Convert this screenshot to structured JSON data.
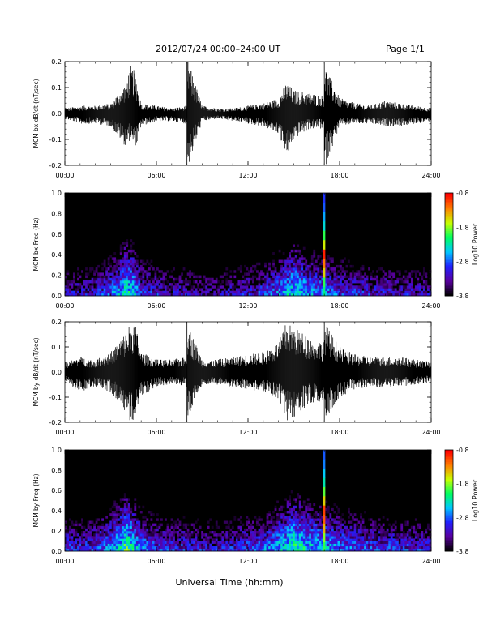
{
  "header": {
    "title": "2012/07/24  00:00–24:00 UT",
    "page": "Page 1/1"
  },
  "footer": {
    "xlabel": "Universal Time (hh:mm)"
  },
  "colors": {
    "trace": "#000000",
    "colormap": [
      "#000000",
      "#5a00a0",
      "#2020ff",
      "#00c8ff",
      "#00ff60",
      "#c8ff00",
      "#ff8000",
      "#ff0000"
    ]
  },
  "chart_data": [
    {
      "type": "line",
      "ylabel": "MCM bx dB/dt (nT/sec)",
      "xlim": [
        0,
        24
      ],
      "ylim": [
        -0.2,
        0.2
      ],
      "xticks": [
        "00:00",
        "06:00",
        "12:00",
        "18:00",
        "24:00"
      ],
      "yticks": [
        "-0.2",
        "-0.1",
        "0.0",
        "0.1",
        "0.2"
      ],
      "series": [
        {
          "x": [
            0,
            1,
            2,
            3,
            4,
            4.3,
            4.6,
            5,
            6,
            7,
            8,
            8,
            9,
            10,
            11,
            12,
            13,
            14,
            14.5,
            15,
            16,
            17,
            17,
            18,
            19,
            20,
            21,
            22,
            23,
            24
          ],
          "y": [
            0.02,
            0.03,
            0.03,
            0.04,
            0.12,
            0.19,
            0.16,
            0.04,
            0.03,
            0.02,
            0.03,
            0.22,
            0.03,
            0.02,
            0.02,
            0.03,
            0.04,
            0.06,
            0.12,
            0.09,
            0.08,
            0.07,
            0.19,
            0.06,
            0.04,
            0.03,
            0.05,
            0.04,
            0.03,
            0.02
          ],
          "ymin": [
            -0.02,
            -0.04,
            -0.04,
            -0.05,
            -0.13,
            -0.1,
            -0.15,
            -0.05,
            -0.03,
            -0.03,
            -0.04,
            -0.22,
            -0.03,
            -0.02,
            -0.03,
            -0.04,
            -0.05,
            -0.08,
            -0.18,
            -0.1,
            -0.06,
            -0.06,
            -0.22,
            -0.05,
            -0.04,
            -0.04,
            -0.05,
            -0.05,
            -0.04,
            -0.03
          ]
        }
      ]
    },
    {
      "type": "heatmap",
      "ylabel": "MCM bx Freq (Hz)",
      "colorbar_label": "Log10 Power",
      "xlim": [
        0,
        24
      ],
      "ylim": [
        0,
        1.0
      ],
      "xticks": [
        "00:00",
        "06:00",
        "12:00",
        "18:00",
        "24:00"
      ],
      "yticks": [
        "0.0",
        "0.2",
        "0.4",
        "0.6",
        "0.8",
        "1.0"
      ],
      "cbar_ticks": [
        "-0.8",
        "-1.8",
        "-2.8",
        "-3.8"
      ],
      "crange": [
        -3.8,
        -0.8
      ],
      "x": [
        0,
        1,
        2,
        3,
        3.5,
        4,
        4.5,
        5,
        6,
        7,
        8,
        9,
        10,
        11,
        12,
        13,
        14,
        15,
        16,
        17,
        18,
        19,
        20,
        21,
        22,
        23,
        24
      ],
      "lf_power": [
        -3.2,
        -3.2,
        -3.1,
        -2.8,
        -2.6,
        -2.2,
        -2.4,
        -2.9,
        -3.1,
        -3.2,
        -3.2,
        -3.3,
        -3.3,
        -3.2,
        -3.1,
        -3.0,
        -2.7,
        -2.3,
        -2.6,
        -2.7,
        -2.9,
        -3.0,
        -3.1,
        -3.1,
        -3.2,
        -3.2,
        -3.3
      ],
      "spike": {
        "t": 17.0,
        "power": [
          -2.2,
          -2.0,
          -1.5,
          -1.2,
          -0.9,
          -1.6,
          -2.0,
          -2.4,
          -2.6,
          -2.8,
          -2.9
        ]
      }
    },
    {
      "type": "line",
      "ylabel": "MCM by dB/dt (nT/sec)",
      "xlim": [
        0,
        24
      ],
      "ylim": [
        -0.2,
        0.2
      ],
      "xticks": [
        "00:00",
        "06:00",
        "12:00",
        "18:00",
        "24:00"
      ],
      "yticks": [
        "-0.2",
        "-0.1",
        "0.0",
        "0.1",
        "0.2"
      ],
      "series": [
        {
          "x": [
            0,
            1,
            2,
            3,
            4,
            4.3,
            4.6,
            5,
            6,
            7,
            8,
            8,
            9,
            10,
            11,
            12,
            13,
            14,
            14.5,
            15,
            16,
            17,
            17,
            18,
            19,
            20,
            21,
            22,
            23,
            24
          ],
          "y": [
            0.04,
            0.06,
            0.05,
            0.08,
            0.16,
            0.2,
            0.2,
            0.08,
            0.05,
            0.05,
            0.06,
            0.2,
            0.05,
            0.05,
            0.06,
            0.07,
            0.08,
            0.12,
            0.2,
            0.18,
            0.14,
            0.12,
            0.2,
            0.1,
            0.07,
            0.06,
            0.06,
            0.06,
            0.05,
            0.04
          ],
          "ymin": [
            -0.04,
            -0.08,
            -0.06,
            -0.08,
            -0.16,
            -0.2,
            -0.2,
            -0.1,
            -0.06,
            -0.05,
            -0.06,
            -0.2,
            -0.05,
            -0.05,
            -0.06,
            -0.07,
            -0.08,
            -0.12,
            -0.2,
            -0.18,
            -0.13,
            -0.12,
            -0.2,
            -0.1,
            -0.07,
            -0.06,
            -0.06,
            -0.06,
            -0.05,
            -0.04
          ]
        }
      ]
    },
    {
      "type": "heatmap",
      "ylabel": "MCM by Freq (Hz)",
      "colorbar_label": "Log10 Power",
      "xlim": [
        0,
        24
      ],
      "ylim": [
        0,
        1.0
      ],
      "xticks": [
        "00:00",
        "06:00",
        "12:00",
        "18:00",
        "24:00"
      ],
      "yticks": [
        "0.0",
        "0.2",
        "0.4",
        "0.6",
        "0.8",
        "1.0"
      ],
      "cbar_ticks": [
        "-0.8",
        "-1.8",
        "-2.8",
        "-3.8"
      ],
      "crange": [
        -3.8,
        -0.8
      ],
      "x": [
        0,
        1,
        2,
        3,
        3.5,
        4,
        4.5,
        5,
        6,
        7,
        8,
        9,
        10,
        11,
        12,
        13,
        14,
        15,
        16,
        17,
        18,
        19,
        20,
        21,
        22,
        23,
        24
      ],
      "lf_power": [
        -3.0,
        -3.0,
        -2.9,
        -2.6,
        -2.4,
        -2.0,
        -2.3,
        -2.7,
        -2.9,
        -3.0,
        -3.0,
        -3.1,
        -3.1,
        -3.0,
        -2.9,
        -2.8,
        -2.5,
        -2.1,
        -2.4,
        -2.5,
        -2.7,
        -2.8,
        -2.9,
        -2.9,
        -3.0,
        -3.0,
        -3.1
      ],
      "spike": {
        "t": 17.0,
        "power": [
          -2.0,
          -1.8,
          -1.4,
          -1.1,
          -1.0,
          -1.5,
          -1.9,
          -2.3,
          -2.5,
          -2.7,
          -2.8
        ]
      }
    }
  ]
}
